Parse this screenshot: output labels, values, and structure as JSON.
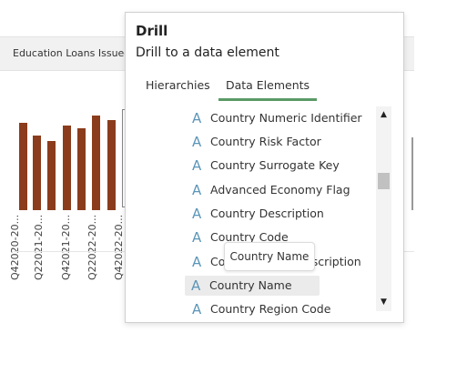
{
  "background_chart": {
    "title": "Education Loans Issued",
    "x_labels": [
      "Q42020-20...",
      "Q22021-20...",
      "Q42021-20...",
      "Q22022-20...",
      "Q42022-20..."
    ],
    "bar_color": "#8b3c1c"
  },
  "popup": {
    "title": "Drill",
    "subtitle": "Drill to a data element",
    "tabs": [
      {
        "label": "Hierarchies",
        "active": false
      },
      {
        "label": "Data Elements",
        "active": true
      }
    ],
    "type_icon": "A",
    "items": [
      "Country Numeric Identifier",
      "Country Risk Factor",
      "Country Surrogate Key",
      "Advanced Economy Flag",
      "Country Description",
      "Country Code",
      "Country Name Description",
      "Country Name",
      "Country Region Code"
    ],
    "selected_item": "Country Name",
    "tooltip": "Country Name",
    "icon_color": "#5b95b8",
    "accent_color": "#5a9a65"
  }
}
